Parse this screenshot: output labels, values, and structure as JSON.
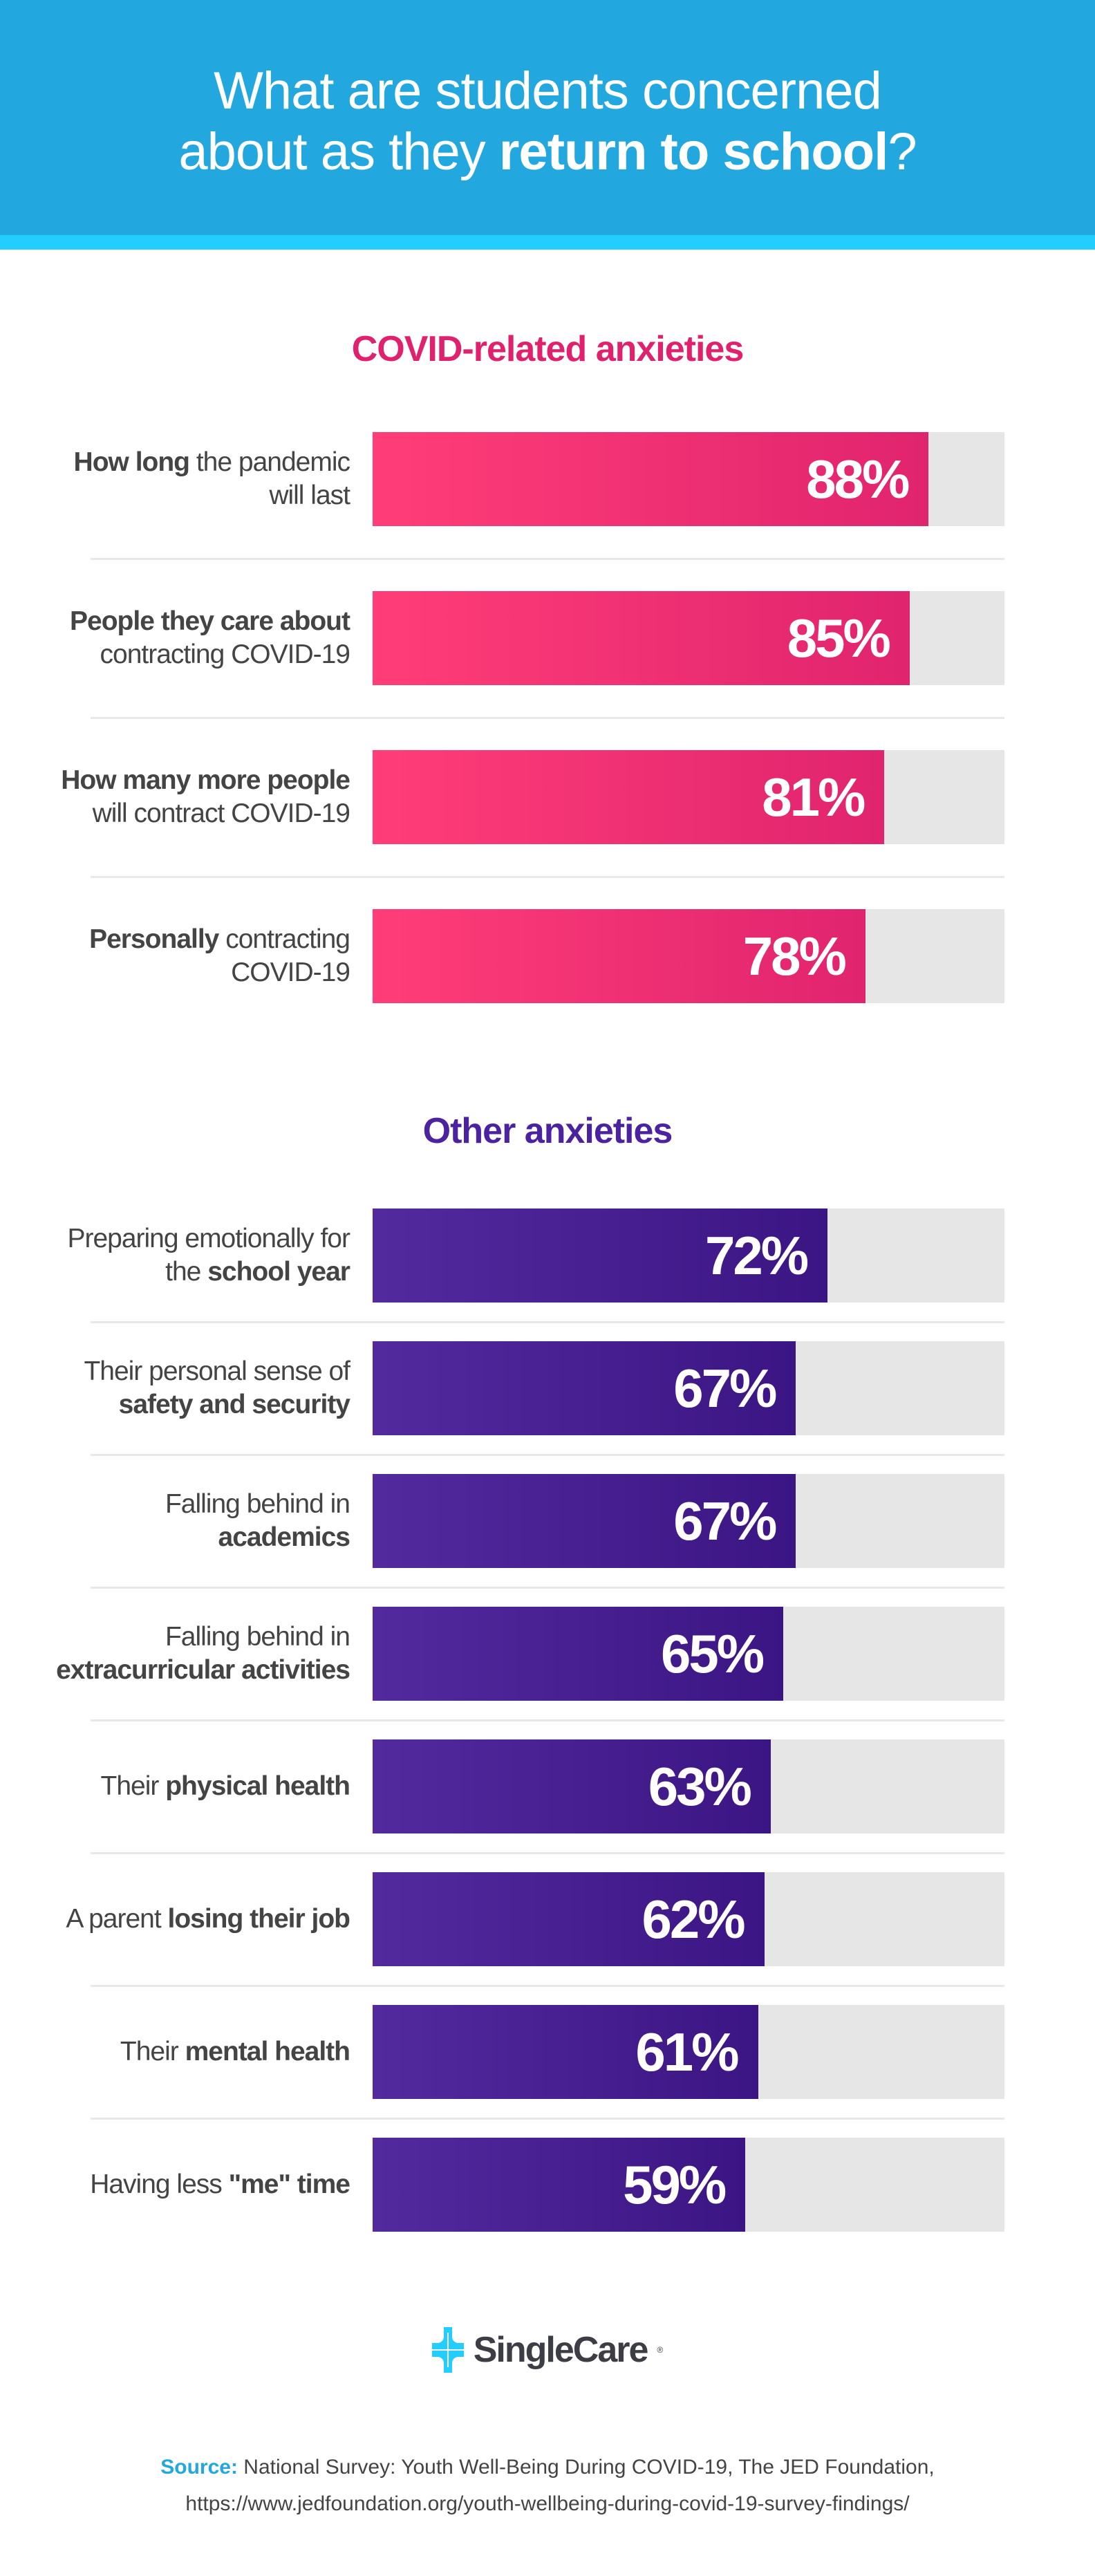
{
  "header": {
    "title_line1": "What are students concerned",
    "title_line2_regular": "about as they ",
    "title_line2_bold": "return to school",
    "title_line2_end": "?"
  },
  "colors": {
    "header_bg": "#22a8de",
    "stripe": "#22cdff",
    "covid_accent": "#e0226e",
    "covid_bar_start": "#ff3d78",
    "covid_bar_end": "#e0246e",
    "other_accent": "#4b23a0",
    "other_bar_start": "#532a9e",
    "other_bar_end": "#3c1584",
    "track": "#e6e6e6"
  },
  "chart_data": [
    {
      "type": "bar",
      "orientation": "horizontal",
      "title": "COVID-related anxieties",
      "xlim": [
        0,
        100
      ],
      "categories": [
        [
          {
            "t": "How long",
            "b": true
          },
          {
            "t": " the pandemic will last",
            "b": false
          }
        ],
        [
          {
            "t": "People they care about",
            "b": true
          },
          {
            "t": " contracting COVID-19",
            "b": false
          }
        ],
        [
          {
            "t": "How many more people",
            "b": true
          },
          {
            "t": " will contract COVID-19",
            "b": false
          }
        ],
        [
          {
            "t": "Personally",
            "b": true
          },
          {
            "t": " contracting COVID-19",
            "b": false
          }
        ]
      ],
      "values": [
        88,
        85,
        81,
        78
      ],
      "labels": [
        "88%",
        "85%",
        "81%",
        "78%"
      ]
    },
    {
      "type": "bar",
      "orientation": "horizontal",
      "title": "Other anxieties",
      "xlim": [
        0,
        100
      ],
      "categories": [
        [
          {
            "t": "Preparing emotionally for the ",
            "b": false
          },
          {
            "t": "school year",
            "b": true
          }
        ],
        [
          {
            "t": "Their personal sense of ",
            "b": false
          },
          {
            "t": "safety and security",
            "b": true
          }
        ],
        [
          {
            "t": "Falling behind in ",
            "b": false
          },
          {
            "t": "academics",
            "b": true
          }
        ],
        [
          {
            "t": "Falling behind in ",
            "b": false
          },
          {
            "t": "extracurricular activities",
            "b": true
          }
        ],
        [
          {
            "t": "Their ",
            "b": false
          },
          {
            "t": "physical health",
            "b": true
          }
        ],
        [
          {
            "t": "A parent ",
            "b": false
          },
          {
            "t": "losing their job",
            "b": true
          }
        ],
        [
          {
            "t": "Their ",
            "b": false
          },
          {
            "t": "mental health",
            "b": true
          }
        ],
        [
          {
            "t": "Having less ",
            "b": false
          },
          {
            "t": "\"me\" time",
            "b": true
          }
        ]
      ],
      "values": [
        72,
        67,
        67,
        65,
        63,
        62,
        61,
        59
      ],
      "labels": [
        "72%",
        "67%",
        "67%",
        "65%",
        "63%",
        "62%",
        "61%",
        "59%"
      ]
    }
  ],
  "logo": {
    "text": "SingleCare",
    "mark": "®",
    "icon": "cross-plus-icon"
  },
  "source": {
    "label": "Source:",
    "text": " National Survey: Youth Well-Being During COVID-19, The JED Foundation,",
    "url": "https://www.jedfoundation.org/youth-wellbeing-during-covid-19-survey-findings/"
  }
}
